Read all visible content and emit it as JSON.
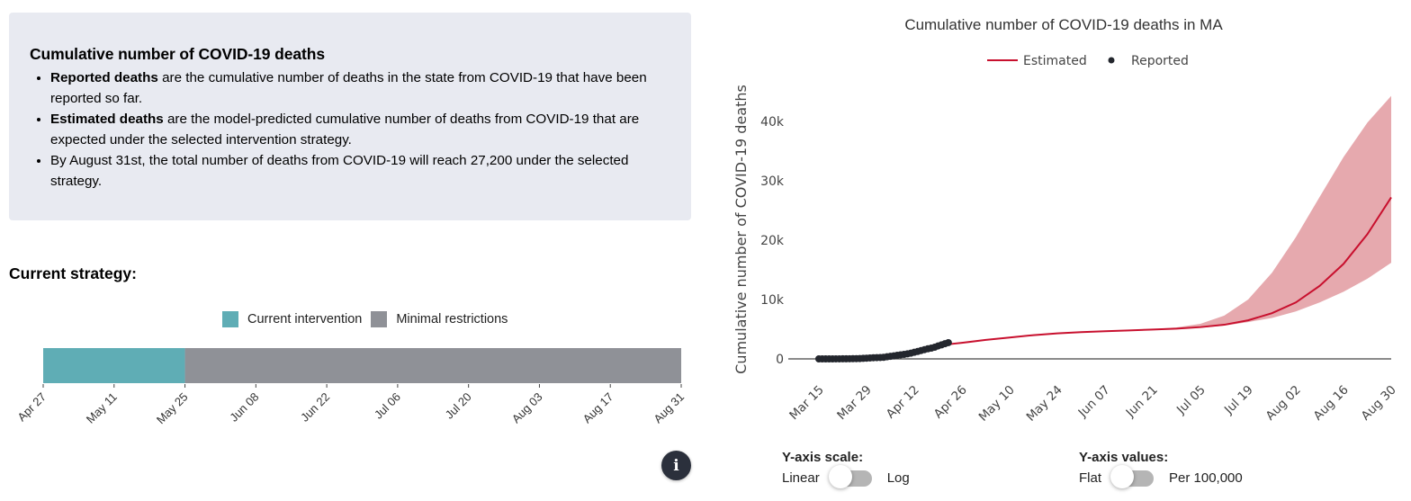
{
  "info": {
    "title": "Cumulative number of COVID-19 deaths",
    "bullets": [
      {
        "bold": "Reported deaths",
        "text": " are the cumulative number of deaths in the state from COVID-19 that have been reported so far."
      },
      {
        "bold": "Estimated deaths",
        "text": " are the model-predicted cumulative number of deaths from COVID-19 that are expected under the selected intervention strategy."
      },
      {
        "bold": "",
        "text": "By August 31st, the total number of deaths from COVID-19 will reach 27,200 under the selected strategy."
      }
    ]
  },
  "strategy": {
    "title": "Current strategy:",
    "legend": [
      {
        "label": "Current intervention",
        "color": "#5fadb5"
      },
      {
        "label": "Minimal restrictions",
        "color": "#8f9197"
      }
    ],
    "timeline": {
      "ticks": [
        "Apr 27",
        "May 11",
        "May 25",
        "Jun 08",
        "Jun 22",
        "Jul 06",
        "Jul 20",
        "Aug 03",
        "Aug 17",
        "Aug 31"
      ],
      "segments": [
        {
          "name": "Current intervention",
          "start_tick": 0,
          "end_tick": 2,
          "color": "#5fadb5"
        },
        {
          "name": "Minimal restrictions",
          "start_tick": 2,
          "end_tick": 9,
          "color": "#8f9197"
        }
      ]
    }
  },
  "info_button": {
    "icon": "info-icon",
    "glyph": "i"
  },
  "chart_data": {
    "type": "line",
    "title": "Cumulative number of COVID-19 deaths in MA",
    "xlabel": "",
    "ylabel": "Cumulative number of COVID-19 deaths",
    "legend": [
      {
        "name": "Estimated",
        "color": "#c8102e",
        "marker": "line"
      },
      {
        "name": "Reported",
        "color": "#23262d",
        "marker": "dot"
      }
    ],
    "legend_position": "top-center",
    "x_start_date": "Mar 15",
    "x_range_days": [
      0,
      168
    ],
    "x_tick_labels": [
      "Mar 15",
      "Mar 29",
      "Apr 12",
      "Apr 26",
      "May 10",
      "May 24",
      "Jun 07",
      "Jun 21",
      "Jul 05",
      "Jul 19",
      "Aug 02",
      "Aug 16",
      "Aug 30"
    ],
    "y_range": [
      0,
      46000
    ],
    "y_ticks": [
      0,
      10000,
      20000,
      30000,
      40000
    ],
    "y_tick_labels": [
      "0",
      "10k",
      "20k",
      "30k",
      "40k"
    ],
    "grid": false,
    "series": [
      {
        "name": "Reported",
        "type": "scatter",
        "x_days": [
          0,
          1,
          2,
          3,
          4,
          5,
          6,
          7,
          8,
          9,
          10,
          11,
          12,
          13,
          14,
          15,
          16,
          17,
          18,
          19,
          20,
          21,
          22,
          23,
          24,
          25,
          26,
          27,
          28,
          29,
          30,
          31,
          32,
          33,
          34,
          35,
          36,
          37,
          38
        ],
        "values": [
          0,
          0,
          0,
          1,
          2,
          6,
          9,
          11,
          15,
          25,
          35,
          44,
          56,
          89,
          122,
          154,
          192,
          216,
          231,
          260,
          356,
          433,
          503,
          599,
          686,
          756,
          844,
          957,
          1108,
          1245,
          1404,
          1560,
          1706,
          1809,
          1961,
          2182,
          2360,
          2556,
          2730
        ]
      },
      {
        "name": "Estimated",
        "type": "line",
        "x_days": [
          37,
          42,
          49,
          56,
          63,
          70,
          77,
          84,
          91,
          98,
          105,
          112,
          119,
          126,
          133,
          140,
          147,
          154,
          161,
          168
        ],
        "values": [
          2400,
          2700,
          3200,
          3600,
          4000,
          4300,
          4500,
          4650,
          4800,
          4950,
          5100,
          5350,
          5750,
          6500,
          7700,
          9500,
          12300,
          16000,
          21000,
          27200
        ]
      },
      {
        "name": "Estimated range",
        "type": "area",
        "x_days": [
          100,
          105,
          112,
          119,
          126,
          133,
          140,
          147,
          154,
          161,
          168
        ],
        "upper": [
          5100,
          5300,
          5900,
          7300,
          10000,
          14500,
          20500,
          27300,
          34000,
          39800,
          44300
        ],
        "lower": [
          5000,
          5050,
          5250,
          5600,
          6200,
          6900,
          8000,
          9500,
          11300,
          13500,
          16200
        ],
        "color": "#e5a4aa"
      }
    ]
  },
  "controls": {
    "y_scale": {
      "label": "Y-axis scale:",
      "left": "Linear",
      "right": "Log",
      "state": "Linear"
    },
    "y_values": {
      "label": "Y-axis values:",
      "left": "Flat",
      "right": "Per 100,000",
      "state": "Flat"
    }
  }
}
